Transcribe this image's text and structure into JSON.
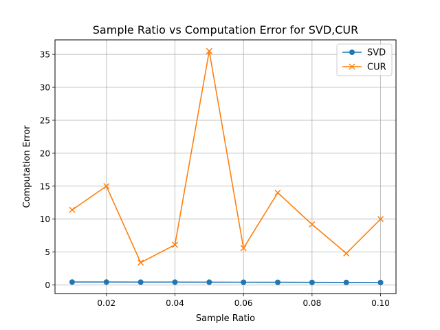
{
  "chart_data": {
    "type": "line",
    "title": "Sample Ratio vs Computation Error for SVD,CUR",
    "xlabel": "Sample Ratio",
    "ylabel": "Computation Error",
    "x": [
      0.01,
      0.02,
      0.03,
      0.04,
      0.05,
      0.06,
      0.07,
      0.08,
      0.09,
      0.1
    ],
    "xlim": [
      0.005,
      0.1045
    ],
    "ylim": [
      -1.3,
      37.2
    ],
    "xticks": [
      0.02,
      0.04,
      0.06,
      0.08,
      0.1
    ],
    "xtick_labels": [
      "0.02",
      "0.04",
      "0.06",
      "0.08",
      "0.10"
    ],
    "yticks": [
      0,
      5,
      10,
      15,
      20,
      25,
      30,
      35
    ],
    "ytick_labels": [
      "0",
      "5",
      "10",
      "15",
      "20",
      "25",
      "30",
      "35"
    ],
    "grid": true,
    "legend_position": "top-right",
    "series": [
      {
        "name": "SVD",
        "color": "#1f77b4",
        "marker": "circle",
        "values": [
          0.45,
          0.45,
          0.44,
          0.44,
          0.43,
          0.42,
          0.41,
          0.4,
          0.39,
          0.38
        ]
      },
      {
        "name": "CUR",
        "color": "#ff7f0e",
        "marker": "x",
        "values": [
          11.4,
          15.0,
          3.4,
          6.1,
          35.5,
          5.6,
          14.0,
          9.2,
          4.8,
          10.0
        ]
      }
    ]
  }
}
